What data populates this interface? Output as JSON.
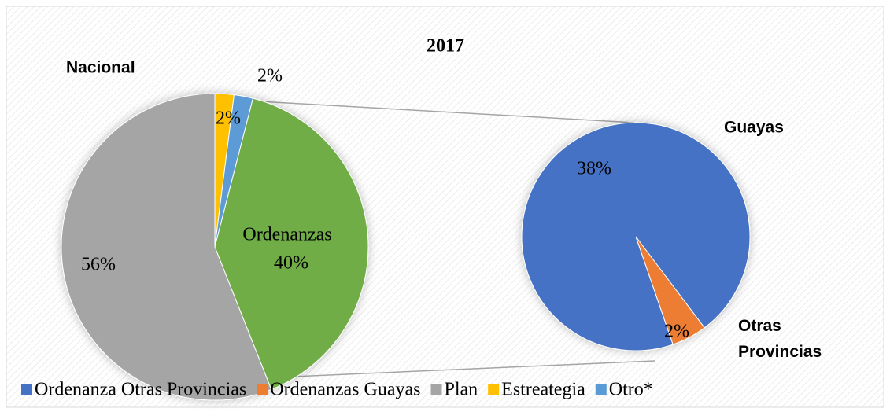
{
  "chart_data": {
    "type": "pie",
    "title": "2017",
    "annotations": [
      "Nacional",
      "Guayas",
      "Otras Provincias"
    ],
    "legend": "bottom",
    "pies": [
      {
        "categories": [
          "Estreategia",
          "Otro*",
          "Ordenanzas",
          "Plan"
        ],
        "values": [
          2,
          2,
          40,
          56
        ],
        "value_labels": [
          "2%",
          "2%",
          "40%",
          "56%"
        ],
        "colors": [
          "#ffc000",
          "#5b9bd5",
          "#70ad47",
          "#a5a5a5"
        ]
      },
      {
        "categories": [
          "Ordenanza Otras Provincias",
          "Ordenanzas Guayas"
        ],
        "values": [
          38,
          2
        ],
        "value_labels": [
          "38%",
          "2%"
        ],
        "colors": [
          "#4472c4",
          "#ed7d31"
        ]
      }
    ]
  }
}
